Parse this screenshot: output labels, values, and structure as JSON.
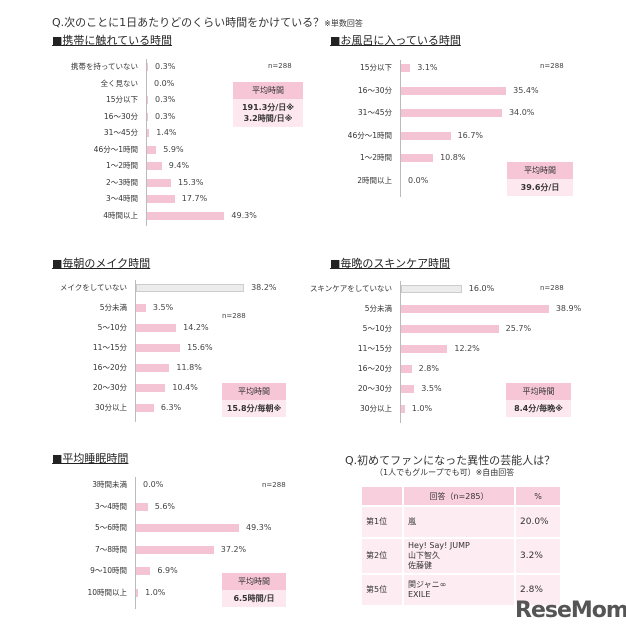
{
  "question1": "Q.次のことに1日あたりどのくらい時間をかけている？",
  "question1_note": "※単数回答",
  "colors": {
    "bar": "#f5c4d4",
    "bar_none": "#ececec",
    "box_header": "#f6c6d6",
    "box_body": "#fde8ef"
  },
  "chart_data": [
    {
      "type": "bar",
      "orientation": "horizontal",
      "title": "■携帯に触れている時間",
      "n": "n=288",
      "categories": [
        "携帯を持っていない",
        "全く見ない",
        "15分以下",
        "16〜30分",
        "31〜45分",
        "46分〜1時間",
        "1〜2時間",
        "2〜3時間",
        "3〜4時間",
        "4時間以上"
      ],
      "values": [
        0.3,
        0.0,
        0.3,
        0.3,
        1.4,
        5.9,
        9.4,
        15.3,
        17.7,
        49.3
      ],
      "labels": [
        "0.3%",
        "0.0%",
        "0.3%",
        "0.3%",
        "1.4%",
        "5.9%",
        "9.4%",
        "15.3%",
        "17.7%",
        "49.3%"
      ],
      "avg_title": "平均時間",
      "avg_lines": [
        "191.3分/日※",
        "3.2時間/日※"
      ]
    },
    {
      "type": "bar",
      "orientation": "horizontal",
      "title": "■お風呂に入っている時間",
      "n": "n=288",
      "categories": [
        "15分以下",
        "16〜30分",
        "31〜45分",
        "46分〜1時間",
        "1〜2時間",
        "2時間以上"
      ],
      "values": [
        3.1,
        35.4,
        34.0,
        16.7,
        10.8,
        0.0
      ],
      "labels": [
        "3.1%",
        "35.4%",
        "34.0%",
        "16.7%",
        "10.8%",
        "0.0%"
      ],
      "avg_title": "平均時間",
      "avg_lines": [
        "39.6分/日"
      ]
    },
    {
      "type": "bar",
      "orientation": "horizontal",
      "title": "■毎朝のメイク時間",
      "n": "n=288",
      "categories": [
        "メイクをしていない",
        "5分未満",
        "5〜10分",
        "11〜15分",
        "16〜20分",
        "20〜30分",
        "30分以上"
      ],
      "values": [
        38.2,
        3.5,
        14.2,
        15.6,
        11.8,
        10.4,
        6.3
      ],
      "labels": [
        "38.2%",
        "3.5%",
        "14.2%",
        "15.6%",
        "11.8%",
        "10.4%",
        "6.3%"
      ],
      "avg_title": "平均時間",
      "avg_lines": [
        "15.8分/毎朝※"
      ]
    },
    {
      "type": "bar",
      "orientation": "horizontal",
      "title": "■毎晩のスキンケア時間",
      "n": "n=288",
      "categories": [
        "スキンケアをしていない",
        "5分未満",
        "5〜10分",
        "11〜15分",
        "16〜20分",
        "20〜30分",
        "30分以上"
      ],
      "values": [
        16.0,
        38.9,
        25.7,
        12.2,
        2.8,
        3.5,
        1.0
      ],
      "labels": [
        "16.0%",
        "38.9%",
        "25.7%",
        "12.2%",
        "2.8%",
        "3.5%",
        "1.0%"
      ],
      "avg_title": "平均時間",
      "avg_lines": [
        "8.4分/毎晩※"
      ]
    },
    {
      "type": "bar",
      "orientation": "horizontal",
      "title": "■平均睡眠時間",
      "n": "n=288",
      "categories": [
        "3時間未満",
        "3〜4時間",
        "5〜6時間",
        "7〜8時間",
        "9〜10時間",
        "10時間以上"
      ],
      "values": [
        0.0,
        5.6,
        49.3,
        37.2,
        6.9,
        1.0
      ],
      "labels": [
        "0.0%",
        "5.6%",
        "49.3%",
        "37.2%",
        "6.9%",
        "1.0%"
      ],
      "avg_title": "平均時間",
      "avg_lines": [
        "6.5時間/日"
      ]
    }
  ],
  "question2": "Q.初めてファンになった異性の芸能人は？",
  "question2_sub": "（1人でもグループでも可）※自由回答",
  "table": {
    "headers": [
      "",
      "回答（n=285）",
      "%"
    ],
    "rows": [
      [
        "第1位",
        "嵐",
        "20.0%"
      ],
      [
        "第2位",
        "Hey! Say! JUMP\n山下智久\n佐藤健",
        "3.2%"
      ],
      [
        "第5位",
        "関ジャニ∞\nEXILE",
        "2.8%"
      ]
    ]
  },
  "logo": "ReseMom"
}
